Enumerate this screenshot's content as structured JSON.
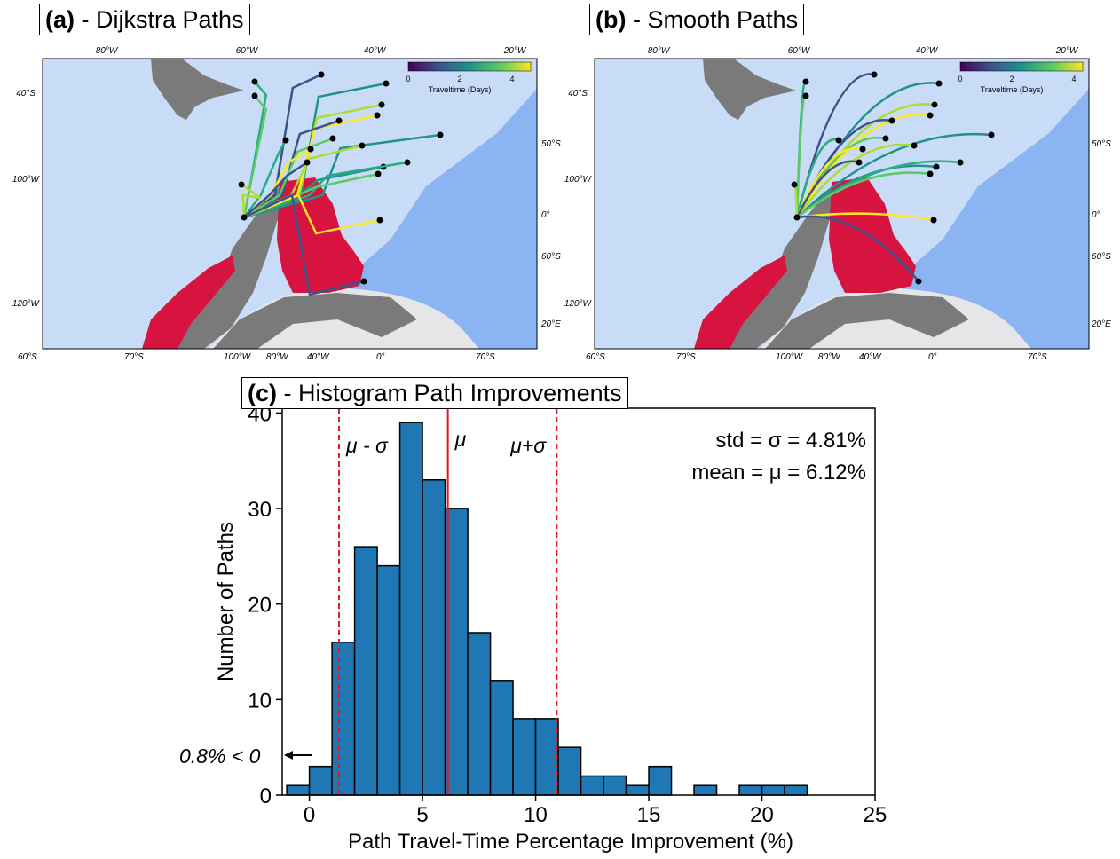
{
  "panels": {
    "a": {
      "letter": "(a)",
      "title": " - Dijkstra Paths"
    },
    "b": {
      "letter": "(b)",
      "title": " - Smooth Paths"
    },
    "c": {
      "letter": "(c)",
      "title": " - Histogram Path Improvements"
    }
  },
  "map_labels": {
    "colorbar_label": "Traveltime (Days)",
    "colorbar_ticks": [
      "0",
      "2",
      "4"
    ],
    "top_lon": [
      "80°W",
      "60°W",
      "40°W",
      "20°W"
    ],
    "left_lat": [
      "40°S",
      "100°W",
      "120°W"
    ],
    "right_lat": [
      "50°S",
      "0°",
      "60°S",
      "20°E"
    ],
    "bottom": [
      "60°S",
      "70°S",
      "100°W",
      "80°W",
      "40°W",
      "0°",
      "70°S"
    ]
  },
  "colors": {
    "ocean": "#8ab4f2",
    "domain": "#c9dcf7",
    "land": "#7a7a7a",
    "antarctica_shelf": "#e6e6e8",
    "sea_ice": "#d6143f",
    "bar": "#1f77b4",
    "mean_line": "#e31a1c",
    "sigma_line": "#e31a1c"
  },
  "chart_data": {
    "type": "bar",
    "title": "(c) - Histogram Path Improvements",
    "xlabel": "Path Travel-Time Percentage Improvement (%)",
    "ylabel": "Number of Paths",
    "xlim": [
      -1.2,
      25
    ],
    "ylim": [
      0,
      40.5
    ],
    "xticks": [
      0,
      5,
      10,
      15,
      20,
      25
    ],
    "yticks": [
      0,
      10,
      20,
      30,
      40
    ],
    "bin_width": 1,
    "bin_edges_start": [
      -1,
      0,
      1,
      2,
      3,
      4,
      5,
      6,
      7,
      8,
      9,
      10,
      11,
      12,
      13,
      14,
      15,
      16,
      17,
      18,
      19,
      20,
      21
    ],
    "values": [
      1,
      3,
      16,
      26,
      24,
      39,
      33,
      30,
      17,
      12,
      8,
      8,
      5,
      2,
      2,
      1,
      3,
      0,
      1,
      0,
      1,
      1,
      1
    ],
    "mean": 6.12,
    "std": 4.81,
    "vlines": [
      {
        "label": "μ - σ",
        "x": 1.31,
        "style": "dashed"
      },
      {
        "label": "μ",
        "x": 6.12,
        "style": "solid"
      },
      {
        "label": "μ+σ",
        "x": 10.93,
        "style": "dashed"
      }
    ],
    "annotations": {
      "std_text": "std = σ = 4.81%",
      "mean_text": "mean = μ = 6.12%",
      "negative_text": "0.8% < 0"
    }
  }
}
